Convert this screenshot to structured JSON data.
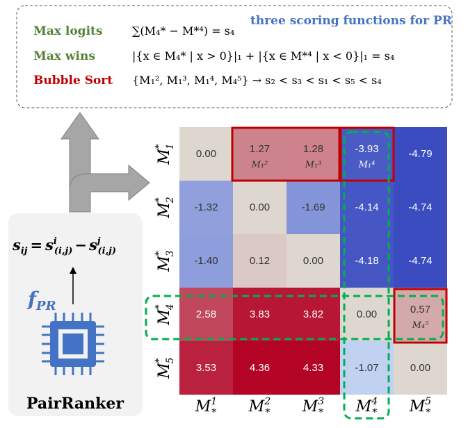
{
  "scoring": {
    "title": "three scoring functions for PR",
    "rows": [
      {
        "name": "Max logits",
        "formula": "∑(M₄* − M*⁴) = s₄"
      },
      {
        "name": "Max wins",
        "formula": "|{x ∈ M₄* | x > 0}|₁ + |{x ∈ M*⁴ | x < 0}|₁ = s₄"
      },
      {
        "name": "Bubble Sort",
        "formula": "{M₁², M₁³, M₁⁴, M₄⁵} → s₂ < s₃ < s₁ < s₅ < s₄"
      }
    ]
  },
  "pairranker": {
    "formula": {
      "lhs": "s",
      "lhs_sub": "ij",
      "eq": "=",
      "t1": "s",
      "t1_sup": "i",
      "t1_sub": "(i,j)",
      "op": "−",
      "t2": "s",
      "t2_sup": "j",
      "t2_sub": "(i,j)"
    },
    "model": {
      "base": "f",
      "sub": "PR"
    },
    "name": "PairRanker"
  },
  "heatmap": {
    "row_labels": [
      {
        "base": "M",
        "sub": "1",
        "sup": "*"
      },
      {
        "base": "M",
        "sub": "2",
        "sup": "*"
      },
      {
        "base": "M",
        "sub": "3",
        "sup": "*"
      },
      {
        "base": "M",
        "sub": "4",
        "sup": "*"
      },
      {
        "base": "M",
        "sub": "5",
        "sup": "*"
      }
    ],
    "col_labels": [
      {
        "base": "M",
        "sub": "*",
        "sup": "1"
      },
      {
        "base": "M",
        "sub": "*",
        "sup": "2"
      },
      {
        "base": "M",
        "sub": "*",
        "sup": "3"
      },
      {
        "base": "M",
        "sub": "*",
        "sup": "4"
      },
      {
        "base": "M",
        "sub": "*",
        "sup": "5"
      }
    ],
    "rows": [
      [
        {
          "value": "0.00"
        },
        {
          "value": "1.27",
          "note": "M₁²"
        },
        {
          "value": "1.28",
          "note": "M₁³"
        },
        {
          "value": "-3.93",
          "note": "M₁⁴"
        },
        {
          "value": "-4.79"
        }
      ],
      [
        {
          "value": "-1.32"
        },
        {
          "value": "0.00"
        },
        {
          "value": "-1.69"
        },
        {
          "value": "-4.14"
        },
        {
          "value": "-4.74"
        }
      ],
      [
        {
          "value": "-1.40"
        },
        {
          "value": "0.12"
        },
        {
          "value": "0.00"
        },
        {
          "value": "-4.18"
        },
        {
          "value": "-4.74"
        }
      ],
      [
        {
          "value": "2.58"
        },
        {
          "value": "3.83"
        },
        {
          "value": "3.82"
        },
        {
          "value": "0.00"
        },
        {
          "value": "0.57",
          "note": "M₄⁵"
        }
      ],
      [
        {
          "value": "3.53"
        },
        {
          "value": "4.36"
        },
        {
          "value": "4.33"
        },
        {
          "value": "-1.07"
        },
        {
          "value": "0.00"
        }
      ]
    ]
  }
}
